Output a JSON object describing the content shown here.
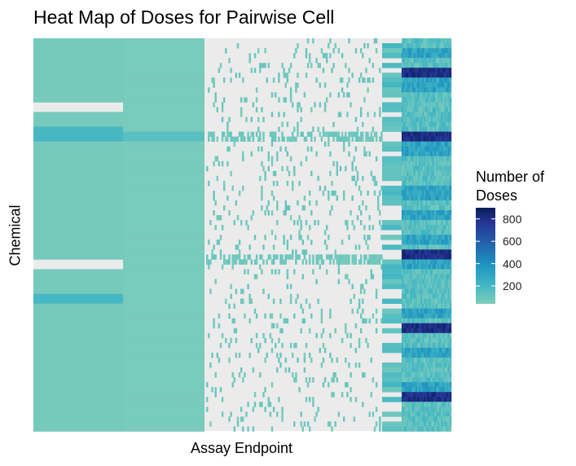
{
  "chart_data": {
    "type": "heatmap",
    "title": "Heat Map of Doses for Pairwise Cell",
    "xlabel": "Assay Endpoint",
    "ylabel": "Chemical",
    "legend": {
      "title_line1": "Number of",
      "title_line2": "Doses",
      "ticks": [
        {
          "value": 800,
          "label": "800"
        },
        {
          "value": 600,
          "label": "600"
        },
        {
          "value": 400,
          "label": "400"
        },
        {
          "value": 200,
          "label": "200"
        }
      ],
      "range": [
        40,
        900
      ],
      "colors": {
        "low": "#7fcdbb",
        "mid": "#1d91c0",
        "high": "#081d58",
        "missing": "#ebebeb"
      },
      "placement": "right"
    },
    "grid": false
  }
}
